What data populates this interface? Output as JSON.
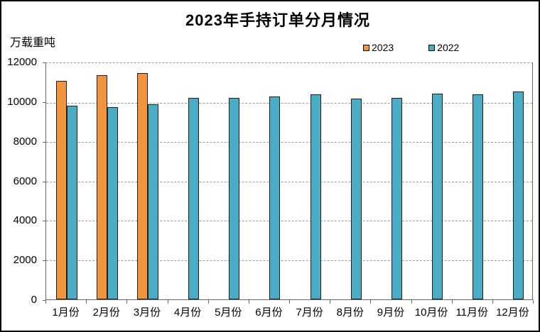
{
  "window": {
    "background_color": "#ffffff",
    "border_color": "#000000"
  },
  "chart_data": {
    "type": "bar",
    "title": "2023年手持订单分月情况",
    "ylabel_unit": "万载重吨",
    "xlabel": "",
    "categories": [
      "1月份",
      "2月份",
      "3月份",
      "4月份",
      "5月份",
      "6月份",
      "7月份",
      "8月份",
      "9月份",
      "10月份",
      "11月份",
      "12月份"
    ],
    "series": [
      {
        "name": "2023",
        "color": "#F0943E",
        "border_color": "#1f1f1f",
        "values": [
          11100,
          11400,
          11500,
          null,
          null,
          null,
          null,
          null,
          null,
          null,
          null,
          null
        ]
      },
      {
        "name": "2022",
        "color": "#4AACC5",
        "border_color": "#1f1f1f",
        "values": [
          9850,
          9750,
          9900,
          10250,
          10250,
          10300,
          10400,
          10200,
          10250,
          10450,
          10400,
          10550
        ]
      }
    ],
    "ylim": [
      0,
      12000
    ],
    "yticks": [
      0,
      2000,
      4000,
      6000,
      8000,
      10000,
      12000
    ],
    "grid": "horizontal-dashed",
    "gridline_color": "#999999",
    "axis_color": "#666666",
    "legend_position": "top-right"
  }
}
